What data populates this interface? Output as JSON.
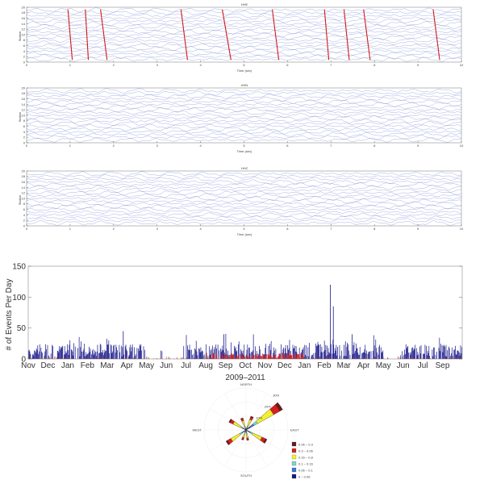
{
  "chart_data": [
    {
      "type": "line",
      "title": "HHE",
      "xlabel": "Time (sec)",
      "ylabel": "Station",
      "xlim": [
        0,
        10
      ],
      "ylim": [
        0,
        20
      ],
      "x_ticks": [
        "0",
        "1",
        "2",
        "3",
        "4",
        "5",
        "6",
        "7",
        "8",
        "9",
        "10"
      ],
      "y_ticks": [
        "0",
        "2",
        "4",
        "6",
        "8",
        "10",
        "12",
        "14",
        "16",
        "18",
        "20"
      ],
      "traces": 19,
      "trace_color": "#7b8fd6",
      "pick_color": "#d11a1a",
      "picks": [
        {
          "t_top": 0.95,
          "t_bottom": 1.05
        },
        {
          "t_top": 1.35,
          "t_bottom": 1.42
        },
        {
          "t_top": 1.7,
          "t_bottom": 1.85
        },
        {
          "t_top": 3.55,
          "t_bottom": 3.7
        },
        {
          "t_top": 4.5,
          "t_bottom": 4.7
        },
        {
          "t_top": 5.65,
          "t_bottom": 5.8
        },
        {
          "t_top": 6.85,
          "t_bottom": 6.95
        },
        {
          "t_top": 7.3,
          "t_bottom": 7.42
        },
        {
          "t_top": 7.75,
          "t_bottom": 7.9
        },
        {
          "t_top": 9.35,
          "t_bottom": 9.5
        }
      ]
    },
    {
      "type": "line",
      "title": "HHN",
      "xlabel": "Time (sec)",
      "ylabel": "Station",
      "xlim": [
        0,
        10
      ],
      "ylim": [
        0,
        20
      ],
      "x_ticks": [
        "0",
        "1",
        "2",
        "3",
        "4",
        "5",
        "6",
        "7",
        "8",
        "9",
        "10"
      ],
      "y_ticks": [
        "0",
        "2",
        "4",
        "6",
        "8",
        "10",
        "12",
        "14",
        "16",
        "18",
        "20"
      ],
      "traces": 19,
      "trace_color": "#7b8fd6"
    },
    {
      "type": "line",
      "title": "HHZ",
      "xlabel": "Time (sec)",
      "ylabel": "Station",
      "xlim": [
        0,
        10
      ],
      "ylim": [
        0,
        20
      ],
      "x_ticks": [
        "0",
        "1",
        "2",
        "3",
        "4",
        "5",
        "6",
        "7",
        "8",
        "9",
        "10"
      ],
      "y_ticks": [
        "0",
        "2",
        "4",
        "6",
        "8",
        "10",
        "12",
        "14",
        "16",
        "18",
        "20"
      ],
      "traces": 19,
      "trace_color": "#7b8fd6"
    },
    {
      "type": "bar",
      "title": "",
      "xlabel": "2009–2011",
      "ylabel": "# of Events Per Day",
      "ylim": [
        0,
        150
      ],
      "y_ticks": [
        "0",
        "50",
        "100",
        "150"
      ],
      "month_labels": [
        "Nov",
        "Dec",
        "Jan",
        "Feb",
        "Mar",
        "Apr",
        "May",
        "Jun",
        "Jul",
        "Aug",
        "Sep",
        "Oct",
        "Nov",
        "Dec",
        "Jan",
        "Feb",
        "Mar",
        "Apr",
        "May",
        "Jun",
        "Jul",
        "Sep"
      ],
      "series": [
        {
          "color": "#1f1f8f"
        },
        {
          "color": "#d42020"
        }
      ],
      "notable_peaks": [
        {
          "month_index": 15.3,
          "value": 120
        },
        {
          "month_index": 15.45,
          "value": 85
        },
        {
          "month_index": 4.8,
          "value": 45
        },
        {
          "month_index": 9.9,
          "value": 40
        },
        {
          "month_index": 16.4,
          "value": 40
        }
      ]
    },
    {
      "type": "rose",
      "direction_labels": [
        "NORTH",
        "EAST",
        "SOUTH",
        "WEST"
      ],
      "legend": [
        {
          "label": "0.06 – 0.3",
          "color": "#6b1a1a"
        },
        {
          "label": "0.3 – 0.06",
          "color": "#d42020"
        },
        {
          "label": "0.16 – 0.8",
          "color": "#f2ef2e"
        },
        {
          "label": "0.1 – 0.16",
          "color": "#7fd4c8"
        },
        {
          "label": "0.06 – 0.1",
          "color": "#3a78d8"
        },
        {
          "label": "0 – 0.06",
          "color": "#1a1a7a"
        }
      ],
      "petals": [
        {
          "dir_deg": 55,
          "len": 1.0
        },
        {
          "dir_deg": 120,
          "len": 0.55
        },
        {
          "dir_deg": 235,
          "len": 0.55
        },
        {
          "dir_deg": 300,
          "len": 0.45
        },
        {
          "dir_deg": 25,
          "len": 0.35
        },
        {
          "dir_deg": 170,
          "len": 0.25
        },
        {
          "dir_deg": 200,
          "len": 0.25
        },
        {
          "dir_deg": 340,
          "len": 0.3
        }
      ],
      "ring_labels": [
        "10%",
        "20%",
        "30%"
      ]
    }
  ]
}
